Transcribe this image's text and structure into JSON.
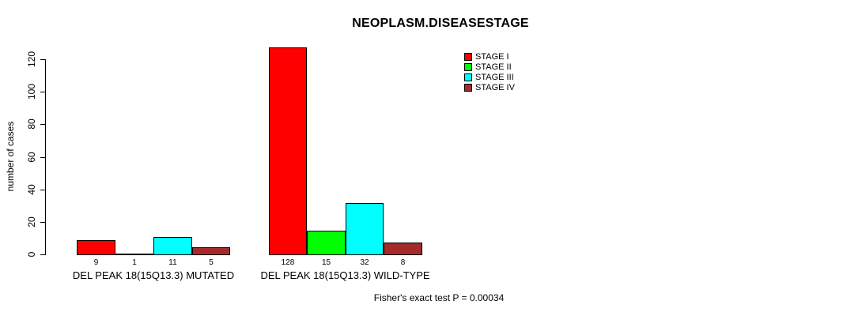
{
  "title": "NEOPLASM.DISEASESTAGE",
  "chart_data": {
    "type": "bar",
    "title": "NEOPLASM.DISEASESTAGE",
    "xlabel": "",
    "ylabel": "number of cases",
    "ylim": [
      0,
      120
    ],
    "yticks": [
      0,
      20,
      40,
      60,
      80,
      100,
      120
    ],
    "grid": false,
    "legend_position": "top-right",
    "categories": [
      "DEL PEAK 18(15Q13.3) MUTATED",
      "DEL PEAK 18(15Q13.3) WILD-TYPE"
    ],
    "series": [
      {
        "name": "STAGE I",
        "color": "#ff0000",
        "values": [
          9,
          128
        ]
      },
      {
        "name": "STAGE II",
        "color": "#00ff00",
        "values": [
          1,
          15
        ]
      },
      {
        "name": "STAGE III",
        "color": "#00ffff",
        "values": [
          11,
          32
        ]
      },
      {
        "name": "STAGE IV",
        "color": "#a52a2a",
        "values": [
          5,
          8
        ]
      }
    ],
    "bar_value_labels": [
      [
        9,
        1,
        11,
        5
      ],
      [
        128,
        15,
        32,
        8
      ]
    ],
    "annotation": "Fisher's exact test P = 0.00034"
  },
  "footer": {
    "stat_text": "Fisher's exact test P = 0.00034"
  }
}
